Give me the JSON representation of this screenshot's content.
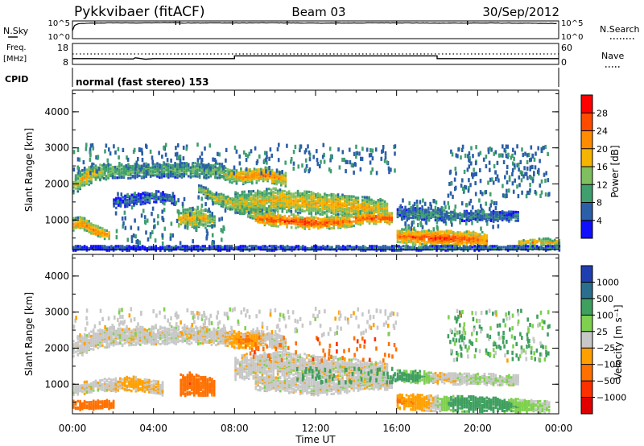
{
  "header": {
    "station": "Pykkvibaer (fitACF)",
    "beam": "Beam 03",
    "date": "30/Sep/2012"
  },
  "strip_panels": {
    "nsky_label": "N.Sky",
    "nsky_ticks": [
      "10^5",
      "10^0"
    ],
    "nsearch_label": "N.Search",
    "nsearch_ticks": [
      "10^5",
      "10^0"
    ],
    "freq_label_1": "Freq.",
    "freq_label_2": "[MHz]",
    "freq_ticks": [
      "18",
      "8"
    ],
    "nave_label": "Nave",
    "nave_ticks": [
      "60",
      "0"
    ],
    "cpid_label": "CPID",
    "cpid_text": "normal (fast stereo) 153"
  },
  "colorbars": {
    "power": {
      "label": "Power [dB]",
      "ticks": [
        "28",
        "24",
        "20",
        "16",
        "12",
        "8",
        "4"
      ],
      "colors": [
        "#ff0000",
        "#ff4b00",
        "#ff8c00",
        "#f5b400",
        "#7fbf5f",
        "#3f9f6f",
        "#2b5fa8",
        "#1010ff"
      ]
    },
    "velocity": {
      "label": "Velocity [m s⁻¹]",
      "ticks": [
        "1000",
        "500",
        "100",
        "25",
        "−25",
        "−100",
        "−500",
        "−1000"
      ],
      "colors": [
        "#1f3fb0",
        "#2b6f8f",
        "#3f9f5f",
        "#7fd04f",
        "#c8c8c8",
        "#ffa000",
        "#ff7000",
        "#ff3000",
        "#e00000"
      ]
    }
  },
  "chart_data": [
    {
      "type": "heatmap",
      "title": "",
      "quantity": "Power",
      "xlabel": "",
      "ylabel": "Slant Range [km]",
      "x_ticks": [
        "00:00",
        "04:00",
        "08:00",
        "12:00",
        "16:00",
        "20:00",
        "00:00"
      ],
      "y_ticks": [
        "1000",
        "2000",
        "3000",
        "4000"
      ],
      "ylim": [
        180,
        4600
      ],
      "bands": [
        {
          "t": [
            0.0,
            0.3,
            0.7,
            1.0,
            1.5
          ],
          "r": [
            2000,
            2120,
            2250,
            2350,
            2380
          ],
          "w": [
            250,
            260,
            260,
            240,
            220
          ],
          "v": [
            14,
            18,
            20,
            18,
            16
          ]
        },
        {
          "t": [
            1.5,
            3.0,
            4.5,
            6.0,
            7.5
          ],
          "r": [
            2380,
            2400,
            2420,
            2420,
            2380
          ],
          "w": [
            220,
            200,
            200,
            200,
            220
          ],
          "v": [
            14,
            12,
            12,
            12,
            14
          ]
        },
        {
          "t": [
            7.5,
            8.0,
            8.5,
            9.5,
            10.5
          ],
          "r": [
            2300,
            2250,
            2250,
            2300,
            2150
          ],
          "w": [
            180,
            200,
            220,
            200,
            180
          ],
          "v": [
            18,
            20,
            22,
            24,
            20
          ]
        },
        {
          "t": [
            6.2,
            7.0,
            8.0,
            9.0,
            10.0
          ],
          "r": [
            1900,
            1650,
            1450,
            1250,
            1100
          ],
          "w": [
            120,
            160,
            180,
            200,
            200
          ],
          "v": [
            14,
            18,
            20,
            22,
            22
          ]
        },
        {
          "t": [
            8.0,
            10.0,
            12.0,
            14.0,
            15.5
          ],
          "r": [
            1500,
            1600,
            1500,
            1420,
            1350
          ],
          "w": [
            300,
            320,
            300,
            280,
            260
          ],
          "v": [
            16,
            20,
            20,
            20,
            18
          ]
        },
        {
          "t": [
            9.0,
            10.5,
            12.0,
            13.5,
            14.5,
            15.8
          ],
          "r": [
            1080,
            1020,
            950,
            1000,
            1100,
            1080
          ],
          "w": [
            160,
            180,
            180,
            160,
            160,
            160
          ],
          "v": [
            24,
            28,
            28,
            26,
            26,
            28
          ]
        },
        {
          "t": [
            16.0,
            17.0,
            18.0,
            19.0,
            20.0,
            20.5
          ],
          "r": [
            600,
            560,
            540,
            520,
            500,
            470
          ],
          "w": [
            200,
            220,
            220,
            220,
            220,
            200
          ],
          "v": [
            24,
            26,
            28,
            26,
            24,
            22
          ]
        },
        {
          "t": [
            16.0,
            17.5,
            19.0,
            21.0,
            22.0
          ],
          "r": [
            1250,
            1200,
            1150,
            1150,
            1120
          ],
          "w": [
            160,
            160,
            140,
            140,
            140
          ],
          "v": [
            8,
            10,
            10,
            8,
            8
          ]
        },
        {
          "t": [
            0.0,
            0.5,
            1.0,
            1.8
          ],
          "r": [
            900,
            950,
            750,
            620
          ],
          "w": [
            180,
            180,
            160,
            140
          ],
          "v": [
            20,
            22,
            24,
            20
          ]
        },
        {
          "t": [
            5.2,
            5.8,
            6.5,
            7.0
          ],
          "r": [
            1050,
            1100,
            1080,
            1000
          ],
          "w": [
            250,
            280,
            260,
            200
          ],
          "v": [
            18,
            20,
            18,
            14
          ]
        },
        {
          "t": [
            2.0,
            3.0,
            4.0,
            5.0
          ],
          "r": [
            1500,
            1600,
            1700,
            1600
          ],
          "w": [
            140,
            160,
            160,
            140
          ],
          "v": [
            6,
            6,
            8,
            6
          ]
        },
        {
          "t": [
            22.0,
            22.8,
            23.5,
            24.0
          ],
          "r": [
            400,
            420,
            430,
            400
          ],
          "w": [
            80,
            90,
            90,
            80
          ],
          "v": [
            20,
            22,
            18,
            16
          ]
        },
        {
          "t": [
            0.0,
            6.0,
            12.0,
            18.0,
            24.0
          ],
          "r": [
            260,
            260,
            260,
            260,
            260
          ],
          "w": [
            70,
            70,
            70,
            70,
            70
          ],
          "v": [
            4,
            6,
            6,
            8,
            8
          ]
        }
      ],
      "scatter": [
        {
          "t": [
            0.0,
            16.0
          ],
          "r": [
            2350,
            3150
          ],
          "v": [
            4,
            10
          ],
          "n": 260
        },
        {
          "t": [
            18.5,
            23.5
          ],
          "r": [
            1700,
            3100
          ],
          "v": [
            4,
            10
          ],
          "n": 200
        },
        {
          "t": [
            16.0,
            21.0
          ],
          "r": [
            800,
            1600
          ],
          "v": [
            4,
            12
          ],
          "n": 120
        },
        {
          "t": [
            2.0,
            7.5
          ],
          "r": [
            400,
            1800
          ],
          "v": [
            4,
            10
          ],
          "n": 120
        }
      ]
    },
    {
      "type": "heatmap",
      "title": "",
      "quantity": "Velocity",
      "xlabel": "Time UT",
      "ylabel": "Slant Range [km]",
      "x_ticks": [
        "00:00",
        "04:00",
        "08:00",
        "12:00",
        "16:00",
        "20:00",
        "00:00"
      ],
      "y_ticks": [
        "1000",
        "2000",
        "3000",
        "4000"
      ],
      "ylim": [
        180,
        4600
      ],
      "bands": [
        {
          "t": [
            0.0,
            0.7,
            1.5,
            3.0,
            4.5,
            6.0,
            7.5
          ],
          "r": [
            2000,
            2200,
            2320,
            2370,
            2390,
            2390,
            2350
          ],
          "w": [
            280,
            280,
            260,
            240,
            240,
            240,
            240
          ],
          "v": [
            0,
            0,
            0,
            0,
            0,
            0,
            0
          ]
        },
        {
          "t": [
            7.5,
            8.5,
            9.5,
            10.5
          ],
          "r": [
            2300,
            2250,
            2300,
            2150
          ],
          "w": [
            220,
            240,
            220,
            200
          ],
          "v": [
            -30,
            -120,
            0,
            0
          ]
        },
        {
          "t": [
            8.0,
            10.0,
            12.0,
            14.0,
            15.5
          ],
          "r": [
            1500,
            1600,
            1500,
            1420,
            1350
          ],
          "w": [
            340,
            360,
            340,
            320,
            300
          ],
          "v": [
            0,
            0,
            0,
            0,
            0
          ]
        },
        {
          "t": [
            9.0,
            10.5,
            12.0,
            13.5,
            14.5,
            15.8
          ],
          "r": [
            1080,
            1020,
            950,
            1000,
            1100,
            1080
          ],
          "w": [
            200,
            220,
            220,
            200,
            200,
            200
          ],
          "v": [
            0,
            0,
            0,
            0,
            0,
            0
          ]
        },
        {
          "t": [
            16.0,
            17.5,
            19.0,
            20.5,
            22.0,
            23.5
          ],
          "r": [
            560,
            520,
            500,
            470,
            440,
            420
          ],
          "w": [
            200,
            220,
            220,
            200,
            180,
            160
          ],
          "v": [
            -120,
            -60,
            200,
            300,
            80,
            30
          ]
        },
        {
          "t": [
            0.0,
            0.6,
            1.2,
            2.0
          ],
          "r": [
            450,
            440,
            460,
            480
          ],
          "w": [
            120,
            120,
            120,
            120
          ],
          "v": [
            -500,
            -400,
            -300,
            -200
          ]
        },
        {
          "t": [
            5.3,
            5.8,
            6.4,
            7.0
          ],
          "r": [
            1000,
            1050,
            1000,
            950
          ],
          "w": [
            300,
            320,
            280,
            220
          ],
          "v": [
            -400,
            -500,
            -300,
            -200
          ]
        },
        {
          "t": [
            16.0,
            17.0,
            18.0,
            20.0,
            22.0
          ],
          "r": [
            1280,
            1250,
            1200,
            1180,
            1150
          ],
          "w": [
            160,
            180,
            160,
            160,
            140
          ],
          "v": [
            200,
            150,
            -30,
            30,
            0
          ]
        },
        {
          "t": [
            0.0,
            1.5,
            3.0,
            4.5
          ],
          "r": [
            900,
            1000,
            1050,
            900
          ],
          "w": [
            160,
            180,
            200,
            180
          ],
          "v": [
            0,
            0,
            -60,
            0
          ]
        }
      ],
      "scatter": [
        {
          "t": [
            0.0,
            16.0
          ],
          "r": [
            2350,
            3150
          ],
          "v": [
            -30,
            30
          ],
          "n": 240
        },
        {
          "t": [
            18.5,
            23.5
          ],
          "r": [
            1700,
            3100
          ],
          "v": [
            -30,
            300
          ],
          "n": 180
        },
        {
          "t": [
            8.0,
            16.0
          ],
          "r": [
            1700,
            2400
          ],
          "v": [
            -600,
            -100
          ],
          "n": 60
        },
        {
          "t": [
            11.0,
            16.0
          ],
          "r": [
            1100,
            1500
          ],
          "v": [
            100,
            400
          ],
          "n": 60
        }
      ]
    },
    {
      "type": "line",
      "title": "",
      "name": "N.Sky / N.Search",
      "x": [
        0,
        0.4,
        1.0,
        2.0,
        3.0,
        4.0,
        5.0,
        5.5,
        6.0,
        8.0,
        10.0,
        12.0,
        14.0,
        16.0,
        18.0,
        20.0,
        22.0,
        24.0
      ],
      "y": [
        200,
        30000,
        40000,
        50000,
        45000,
        50000,
        60000,
        40000,
        50000,
        45000,
        50000,
        40000,
        45000,
        50000,
        40000,
        45000,
        40000,
        30000
      ],
      "yscale": "log",
      "ylim": [
        1,
        100000
      ]
    },
    {
      "type": "line",
      "title": "",
      "name": "Freq. [MHz]",
      "x": [
        0,
        1.0,
        3.0,
        3.1,
        3.6,
        4.0,
        8.0,
        8.0,
        18.0,
        18.0,
        24.0
      ],
      "y": [
        10.6,
        10.6,
        10.4,
        11.0,
        10.3,
        10.6,
        10.6,
        12.0,
        12.0,
        10.6,
        10.6
      ],
      "ylim": [
        8,
        18
      ]
    },
    {
      "type": "line",
      "title": "",
      "name": "Nave",
      "x": [
        0,
        24.0
      ],
      "y": [
        42,
        42
      ],
      "ylim": [
        0,
        60
      ]
    }
  ]
}
